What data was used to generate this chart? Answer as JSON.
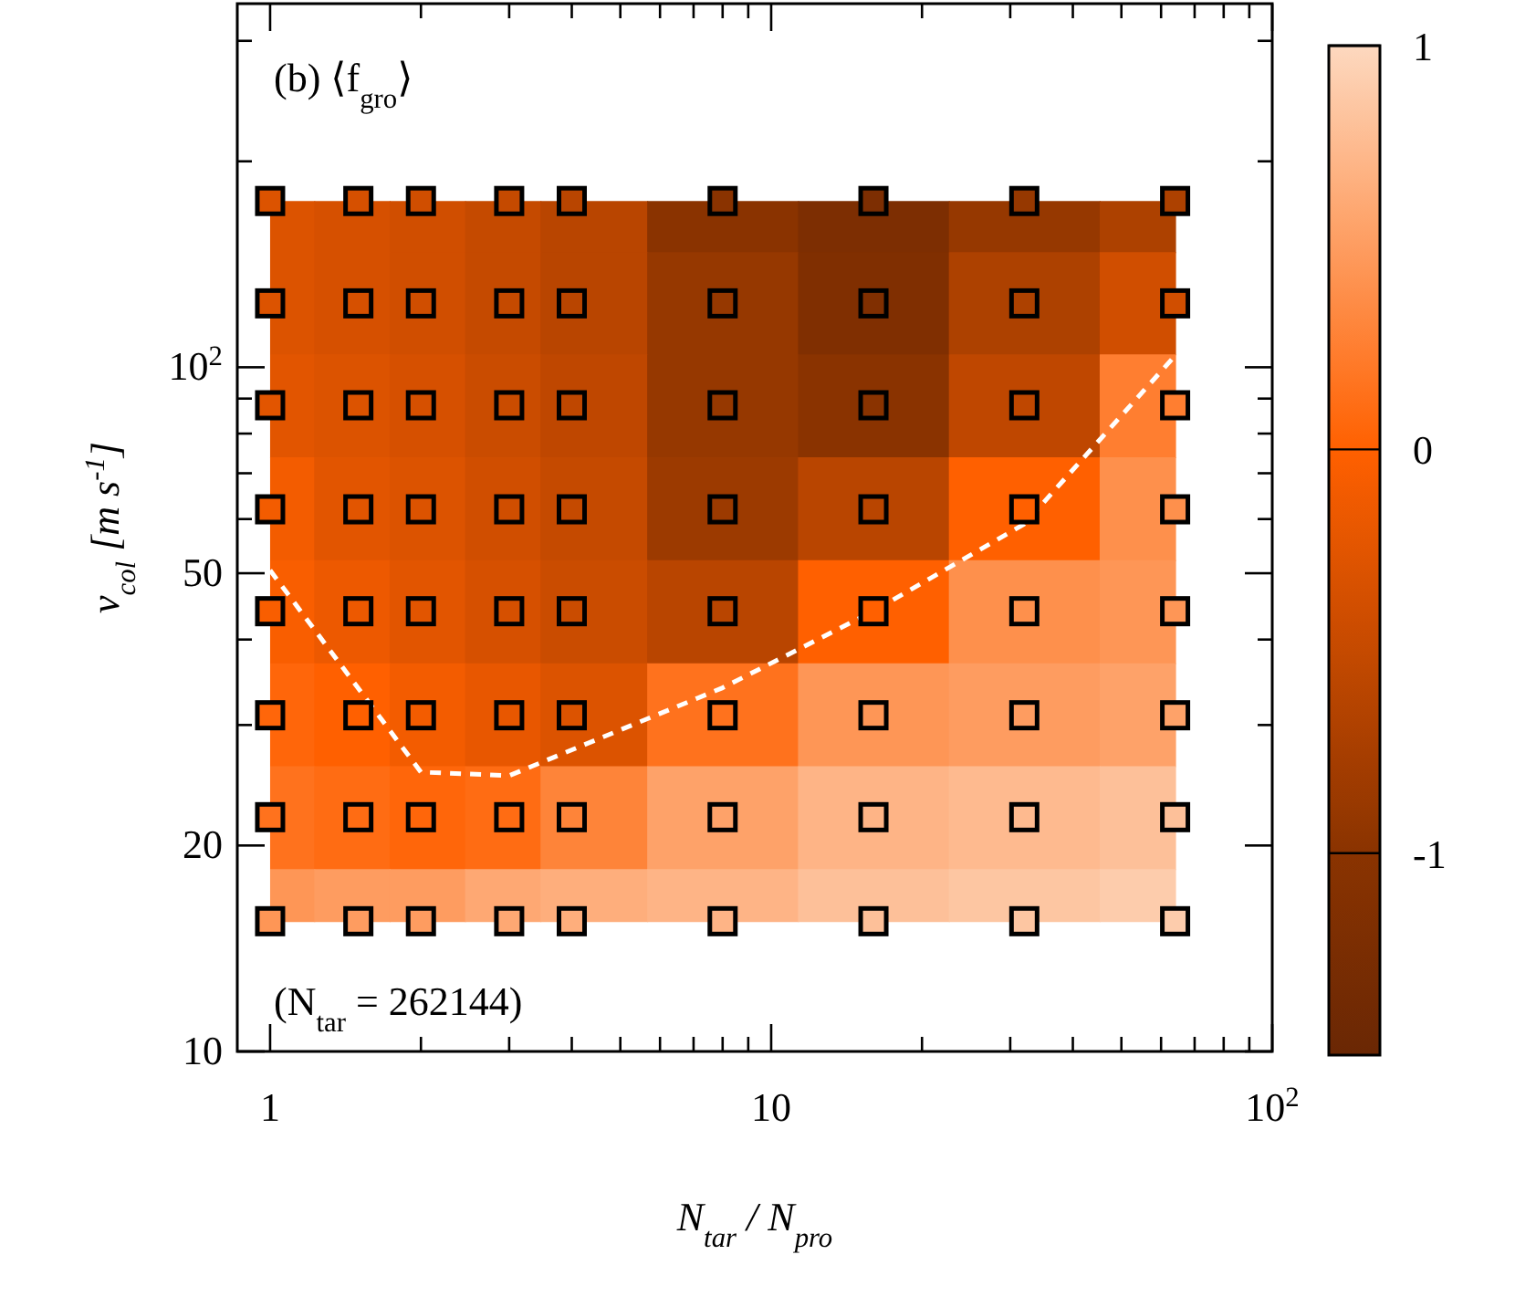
{
  "chart_data": {
    "type": "scatter",
    "annotations": [
      "(b) ⟨f$_{gro}$⟩",
      "(N$_{tar}$ = 262144)"
    ],
    "xlabel": "N$_{tar}$ / N$_{pro}$",
    "ylabel": "v$_{col}$ [m s$^{-1}$]",
    "log": "xy",
    "xlim": [
      0.86,
      100
    ],
    "ylim": [
      10,
      340
    ],
    "xticks": [
      1,
      {
        "value": 2,
        "label": null
      },
      {
        "value": 3,
        "label": null
      },
      {
        "value": 4,
        "label": null
      },
      {
        "value": 5,
        "label": null
      },
      {
        "value": 6,
        "label": null
      },
      {
        "value": 7,
        "label": null
      },
      {
        "value": 8,
        "label": null
      },
      {
        "value": 9,
        "label": null
      },
      10,
      {
        "value": 20,
        "label": null
      },
      {
        "value": 30,
        "label": null
      },
      {
        "value": 40,
        "label": null
      },
      {
        "value": 50,
        "label": null
      },
      {
        "value": 60,
        "label": null
      },
      {
        "value": 70,
        "label": null
      },
      {
        "value": 80,
        "label": null
      },
      {
        "value": 90,
        "label": null
      },
      {
        "value": 100,
        "label": "10$^{2}$"
      }
    ],
    "yticks": [
      10,
      20,
      {
        "value": 30,
        "label": null
      },
      {
        "value": 40,
        "label": null
      },
      50,
      {
        "value": 60,
        "label": null
      },
      {
        "value": 70,
        "label": null
      },
      {
        "value": 80,
        "label": null
      },
      {
        "value": 90,
        "label": null
      },
      {
        "value": 100,
        "label": "10$^{2}$"
      },
      {
        "value": 200,
        "label": null
      },
      {
        "value": 300,
        "label": null
      }
    ],
    "clim": [
      -1.5,
      1
    ],
    "cticks": [
      -1,
      0,
      1
    ],
    "series": [
      {
        "type": "scatter",
        "marker": "square",
        "colors": [
          "#dc5300",
          "#d65000",
          "#d04e00",
          "#c54a00",
          "#b94500",
          "#8a3300",
          "#7d2e02",
          "#963800",
          "#ad4100",
          "#dc5300",
          "#d65000",
          "#d04e00",
          "#c54a00",
          "#b94500",
          "#963800",
          "#802f01",
          "#ad4100",
          "#d04e00",
          "#e25500",
          "#dc5300",
          "#d65000",
          "#ca4c00",
          "#bf4700",
          "#963800",
          "#8a3300",
          "#bf4700",
          "#ff7e30",
          "#f35c00",
          "#e25500",
          "#dc5300",
          "#d04e00",
          "#c54a00",
          "#9c3a00",
          "#b94500",
          "#ff6000",
          "#fe904c",
          "#f95e00",
          "#ed5900",
          "#e25500",
          "#d65000",
          "#ca4c00",
          "#b94500",
          "#ff6000",
          "#fe904c",
          "#fe9656",
          "#ff660a",
          "#ff6000",
          "#f35c00",
          "#e85700",
          "#dc5300",
          "#ff721d",
          "#fe9656",
          "#fe9c60",
          "#fea269",
          "#ff721d",
          "#ff6c13",
          "#ff660a",
          "#ff6c13",
          "#fe8439",
          "#fea269",
          "#feb486",
          "#feba8f",
          "#fdc099",
          "#fe9656",
          "#fe9c60",
          "#fe9c60",
          "#fea873",
          "#feae7c",
          "#feb486",
          "#fdc099",
          "#fdc6a2",
          "#fdccac"
        ],
        "x": [
          1,
          1.5,
          2,
          3,
          4,
          8,
          16,
          32,
          64,
          1,
          1.5,
          2,
          3,
          4,
          8,
          16,
          32,
          64,
          1,
          1.5,
          2,
          3,
          4,
          8,
          16,
          32,
          64,
          1,
          1.5,
          2,
          3,
          4,
          8,
          16,
          32,
          64,
          1,
          1.5,
          2,
          3,
          4,
          8,
          16,
          32,
          64,
          1,
          1.5,
          2,
          3,
          4,
          8,
          16,
          32,
          64,
          1,
          1.5,
          2,
          3,
          4,
          8,
          16,
          32,
          64,
          1,
          1.5,
          2,
          3,
          4,
          8,
          16,
          32,
          64
        ],
        "values": [
          175,
          175,
          175,
          175,
          175,
          175,
          175,
          175,
          175,
          124,
          124,
          124,
          124,
          124,
          124,
          124,
          124,
          124,
          88,
          88,
          88,
          88,
          88,
          88,
          88,
          88,
          88,
          62,
          62,
          62,
          62,
          62,
          62,
          62,
          62,
          62,
          44,
          44,
          44,
          44,
          44,
          44,
          44,
          44,
          44,
          31,
          31,
          31,
          31,
          31,
          31,
          31,
          31,
          31,
          22,
          22,
          22,
          22,
          22,
          22,
          22,
          22,
          22,
          15.5,
          15.5,
          15.5,
          15.5,
          15.5,
          15.5,
          15.5,
          15.5,
          15.5
        ],
        "cvalues": [
          -0.3,
          -0.35,
          -0.4,
          -0.5,
          -0.6,
          -1.0,
          -1.2,
          -0.9,
          -0.7,
          -0.3,
          -0.35,
          -0.4,
          -0.5,
          -0.6,
          -0.9,
          -1.15,
          -0.7,
          -0.4,
          -0.25,
          -0.3,
          -0.35,
          -0.45,
          -0.55,
          -0.9,
          -1.0,
          -0.55,
          0.25,
          -0.1,
          -0.25,
          -0.3,
          -0.4,
          -0.5,
          -0.85,
          -0.6,
          0.0,
          0.4,
          -0.05,
          -0.15,
          -0.25,
          -0.35,
          -0.45,
          -0.6,
          0.0,
          0.4,
          0.45,
          0.05,
          0.0,
          -0.1,
          -0.2,
          -0.3,
          0.15,
          0.45,
          0.5,
          0.55,
          0.15,
          0.1,
          0.05,
          0.1,
          0.3,
          0.55,
          0.7,
          0.75,
          0.8,
          0.45,
          0.5,
          0.5,
          0.6,
          0.65,
          0.7,
          0.8,
          0.85,
          0.9
        ]
      },
      {
        "type": "line",
        "color": "#ffffff",
        "line_style": "dashed",
        "marker": "none",
        "x": [
          1,
          2,
          3,
          8,
          16,
          32,
          64
        ],
        "values": [
          50.5,
          25.6,
          25.3,
          34,
          44,
          59,
          104
        ]
      }
    ]
  }
}
